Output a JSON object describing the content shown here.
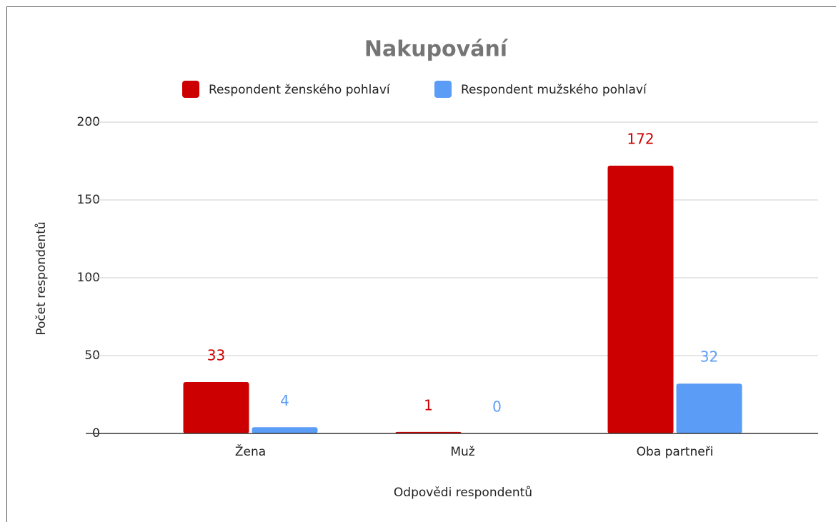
{
  "chart_data": {
    "type": "bar",
    "title": "Nakupování",
    "categories": [
      "Žena",
      "Muž",
      "Oba partneři"
    ],
    "series": [
      {
        "name": "Respondent ženského pohlaví",
        "color": "#cc0000",
        "values": [
          33,
          1,
          172
        ]
      },
      {
        "name": "Respondent mužského pohlaví",
        "color": "#5b9cf6",
        "values": [
          4,
          0,
          32
        ]
      }
    ],
    "x_label": "Odpovědi respondentů",
    "y_label": "Počet respondentů",
    "ylim": [
      0,
      200
    ],
    "yticks": [
      0,
      50,
      100,
      150,
      200
    ],
    "grid": true,
    "legend": "top",
    "data_labels": true
  }
}
